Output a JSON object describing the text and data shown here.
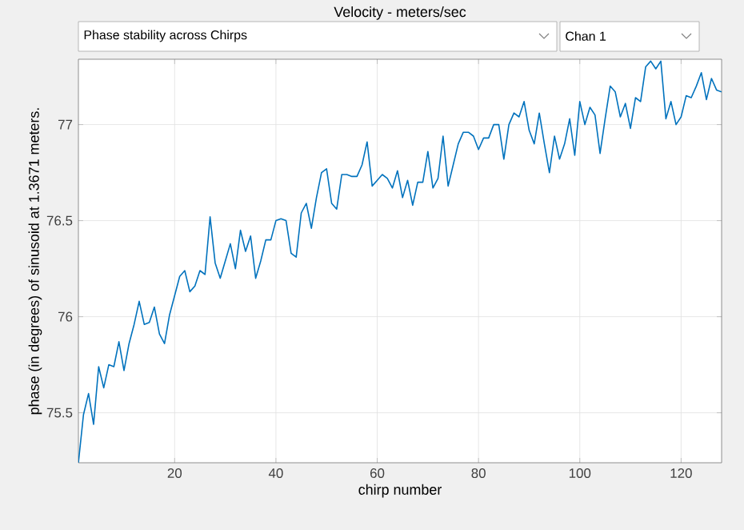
{
  "chart_data": {
    "type": "line",
    "title": "Velocity - meters/sec",
    "xlabel": "chirp number",
    "ylabel": "phase (in degrees) of sinusoid at 1.3671  meters.",
    "annotations": [
      "Phase stability across Chirps",
      "Chan 1"
    ],
    "x": [
      1,
      2,
      3,
      4,
      5,
      6,
      7,
      8,
      9,
      10,
      11,
      12,
      13,
      14,
      15,
      16,
      17,
      18,
      19,
      20,
      21,
      22,
      23,
      24,
      25,
      26,
      27,
      28,
      29,
      30,
      31,
      32,
      33,
      34,
      35,
      36,
      37,
      38,
      39,
      40,
      41,
      42,
      43,
      44,
      45,
      46,
      47,
      48,
      49,
      50,
      51,
      52,
      53,
      54,
      55,
      56,
      57,
      58,
      59,
      60,
      61,
      62,
      63,
      64,
      65,
      66,
      67,
      68,
      69,
      70,
      71,
      72,
      73,
      74,
      75,
      76,
      77,
      78,
      79,
      80,
      81,
      82,
      83,
      84,
      85,
      86,
      87,
      88,
      89,
      90,
      91,
      92,
      93,
      94,
      95,
      96,
      97,
      98,
      99,
      100,
      101,
      102,
      103,
      104,
      105,
      106,
      107,
      108,
      109,
      110,
      111,
      112,
      113,
      114,
      115,
      116,
      117,
      118,
      119,
      120,
      121,
      122,
      123,
      124,
      125,
      126,
      127,
      128
    ],
    "series": [
      {
        "color": "#0072bd",
        "values": [
          75.24,
          75.49,
          75.6,
          75.44,
          75.74,
          75.63,
          75.75,
          75.74,
          75.87,
          75.72,
          75.86,
          75.96,
          76.08,
          75.96,
          75.97,
          76.05,
          75.91,
          75.86,
          76.01,
          76.11,
          76.21,
          76.24,
          76.13,
          76.16,
          76.24,
          76.22,
          76.52,
          76.28,
          76.2,
          76.29,
          76.38,
          76.25,
          76.45,
          76.34,
          76.42,
          76.2,
          76.29,
          76.4,
          76.4,
          76.5,
          76.51,
          76.5,
          76.33,
          76.31,
          76.54,
          76.59,
          76.46,
          76.62,
          76.75,
          76.77,
          76.59,
          76.56,
          76.74,
          76.74,
          76.73,
          76.73,
          76.79,
          76.91,
          76.68,
          76.71,
          76.74,
          76.72,
          76.67,
          76.76,
          76.62,
          76.71,
          76.58,
          76.7,
          76.7,
          76.86,
          76.67,
          76.72,
          76.94,
          76.68,
          76.79,
          76.9,
          76.96,
          76.96,
          76.94,
          76.87,
          76.93,
          76.93,
          77.0,
          77.0,
          76.82,
          77.0,
          77.06,
          77.04,
          77.12,
          76.97,
          76.9,
          77.06,
          76.9,
          76.75,
          76.94,
          76.82,
          76.9,
          77.03,
          76.84,
          77.12,
          77.0,
          77.09,
          77.05,
          76.85,
          77.03,
          77.2,
          77.17,
          77.04,
          77.11,
          76.98,
          77.14,
          77.12,
          77.3,
          77.33,
          77.29,
          77.33,
          77.03,
          77.12,
          77.0,
          77.04,
          77.15,
          77.14,
          77.2,
          77.27,
          77.13,
          77.24,
          77.18,
          77.17
        ]
      }
    ],
    "xlim": [
      1,
      128
    ],
    "ylim": [
      75.24,
      77.34
    ],
    "xticks": [
      20,
      40,
      60,
      80,
      100,
      120
    ],
    "yticks": [
      75.5,
      76,
      76.5,
      77
    ],
    "grid": true
  }
}
